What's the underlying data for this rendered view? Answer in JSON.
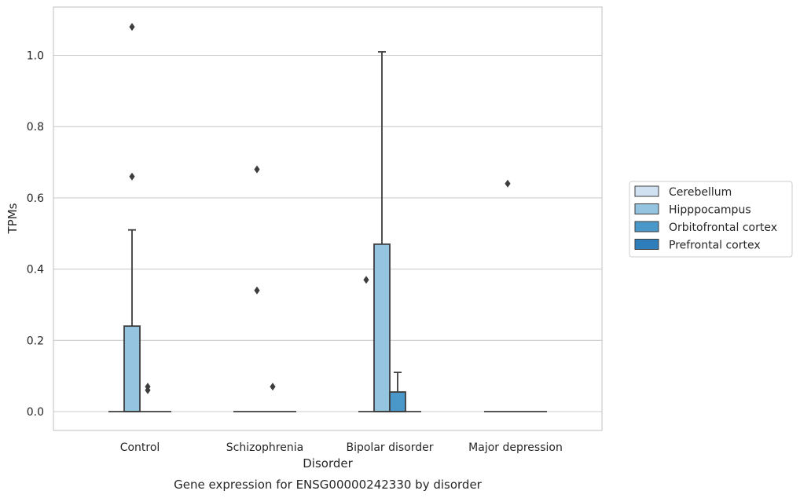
{
  "chart_data": {
    "type": "box",
    "title": "Gene expression for ENSG00000242330 by disorder",
    "xlabel": "Disorder",
    "ylabel": "TPMs",
    "ylim": [
      -0.05,
      1.13
    ],
    "yticks": [
      0.0,
      0.2,
      0.4,
      0.6,
      0.8,
      1.0
    ],
    "ytick_labels": [
      "0.0",
      "0.2",
      "0.4",
      "0.6",
      "0.8",
      "1.0"
    ],
    "grid": "horizontal",
    "legend_position": "right",
    "categories": [
      "Control",
      "Schizophrenia",
      "Bipolar disorder",
      "Major depression"
    ],
    "series": [
      {
        "name": "Cerebellum",
        "color": "#d0e1f2",
        "boxes": [
          {
            "q1": 0,
            "median": 0,
            "q3": 0,
            "whisker_low": 0,
            "whisker_high": 0,
            "outliers": []
          },
          {
            "q1": 0,
            "median": 0,
            "q3": 0,
            "whisker_low": 0,
            "whisker_high": 0,
            "outliers": []
          },
          {
            "q1": 0,
            "median": 0,
            "q3": 0,
            "whisker_low": 0,
            "whisker_high": 0,
            "outliers": [
              0.37
            ]
          },
          {
            "q1": 0,
            "median": 0,
            "q3": 0,
            "whisker_low": 0,
            "whisker_high": 0,
            "outliers": []
          }
        ]
      },
      {
        "name": "Hipppocampus",
        "color": "#94c4df",
        "boxes": [
          {
            "q1": 0,
            "median": 0,
            "q3": 0.24,
            "whisker_low": 0,
            "whisker_high": 0.51,
            "outliers": [
              0.66,
              1.08
            ]
          },
          {
            "q1": 0,
            "median": 0,
            "q3": 0,
            "whisker_low": 0,
            "whisker_high": 0,
            "outliers": [
              0.34,
              0.68
            ]
          },
          {
            "q1": 0,
            "median": 0,
            "q3": 0.47,
            "whisker_low": 0,
            "whisker_high": 1.01,
            "outliers": []
          },
          {
            "q1": 0,
            "median": 0,
            "q3": 0,
            "whisker_low": 0,
            "whisker_high": 0,
            "outliers": [
              0.64
            ]
          }
        ]
      },
      {
        "name": "Orbitofrontal cortex",
        "color": "#4a98c9",
        "boxes": [
          {
            "q1": 0,
            "median": 0,
            "q3": 0,
            "whisker_low": 0,
            "whisker_high": 0,
            "outliers": [
              0.06,
              0.07
            ]
          },
          {
            "q1": 0,
            "median": 0,
            "q3": 0,
            "whisker_low": 0,
            "whisker_high": 0,
            "outliers": [
              0.07
            ]
          },
          {
            "q1": 0,
            "median": 0,
            "q3": 0.055,
            "whisker_low": 0,
            "whisker_high": 0.11,
            "outliers": []
          },
          {
            "q1": 0,
            "median": 0,
            "q3": 0,
            "whisker_low": 0,
            "whisker_high": 0,
            "outliers": []
          }
        ]
      },
      {
        "name": "Prefrontal cortex",
        "color": "#2e7ebc",
        "boxes": [
          {
            "q1": 0,
            "median": 0,
            "q3": 0,
            "whisker_low": 0,
            "whisker_high": 0,
            "outliers": []
          },
          {
            "q1": 0,
            "median": 0,
            "q3": 0,
            "whisker_low": 0,
            "whisker_high": 0,
            "outliers": []
          },
          {
            "q1": 0,
            "median": 0,
            "q3": 0,
            "whisker_low": 0,
            "whisker_high": 0,
            "outliers": []
          },
          {
            "q1": 0,
            "median": 0,
            "q3": 0,
            "whisker_low": 0,
            "whisker_high": 0,
            "outliers": []
          }
        ]
      }
    ]
  }
}
